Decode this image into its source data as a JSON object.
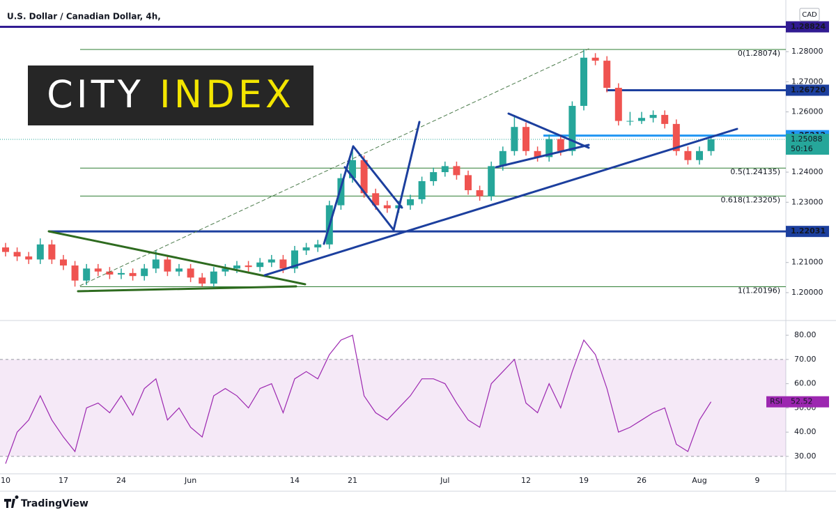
{
  "chart_data": [
    {
      "type": "candlestick",
      "title": "U.S. Dollar / Canadian Dollar, 4h,",
      "currency": "CAD",
      "categories": [
        "10",
        null,
        null,
        null,
        null,
        "17",
        null,
        null,
        null,
        null,
        "24",
        null,
        null,
        null,
        null,
        null,
        "Jun",
        null,
        null,
        null,
        null,
        null,
        null,
        null,
        null,
        "14",
        null,
        null,
        null,
        null,
        "21",
        null,
        null,
        null,
        null,
        null,
        null,
        null,
        "Jul",
        null,
        null,
        null,
        null,
        null,
        null,
        "12",
        null,
        null,
        null,
        null,
        "19",
        null,
        null,
        null,
        null,
        "26",
        null,
        null,
        null,
        null,
        "Aug",
        null,
        null,
        null,
        null,
        "9"
      ],
      "open": [
        1.215,
        1.2135,
        1.212,
        1.211,
        1.216,
        1.211,
        1.209,
        1.204,
        1.208,
        1.207,
        1.206,
        1.2065,
        1.2055,
        1.208,
        1.211,
        1.207,
        1.208,
        1.205,
        1.203,
        1.207,
        1.208,
        1.209,
        1.2085,
        1.21,
        1.211,
        1.208,
        1.214,
        1.215,
        1.216,
        1.229,
        1.238,
        1.244,
        1.233,
        1.229,
        1.228,
        1.229,
        1.231,
        1.237,
        1.24,
        1.242,
        1.239,
        1.234,
        1.232,
        1.242,
        1.247,
        1.255,
        1.247,
        1.245,
        1.251,
        1.247,
        1.262,
        1.278,
        1.277,
        1.268,
        1.257,
        1.257,
        1.258,
        1.259,
        1.256,
        1.247,
        1.244,
        1.247,
        null,
        null,
        null,
        null
      ],
      "high": [
        1.2165,
        1.215,
        1.2135,
        1.218,
        1.2175,
        1.2125,
        1.2105,
        1.2095,
        1.2095,
        1.2085,
        1.208,
        1.208,
        1.2095,
        1.214,
        1.2125,
        1.2095,
        1.2095,
        1.2065,
        1.2085,
        1.2095,
        1.2105,
        1.2105,
        1.2115,
        1.2125,
        1.2125,
        1.2155,
        1.2165,
        1.2175,
        1.2305,
        1.2395,
        1.248,
        1.2455,
        1.2345,
        1.2305,
        1.2305,
        1.2325,
        1.2385,
        1.2415,
        1.2435,
        1.2435,
        1.2405,
        1.2355,
        1.2435,
        1.2485,
        1.259,
        1.2565,
        1.2485,
        1.2525,
        1.2525,
        1.2635,
        1.2807,
        1.2795,
        1.2785,
        1.2695,
        1.26,
        1.26,
        1.2605,
        1.2605,
        1.2575,
        1.2485,
        1.2485,
        1.252,
        null,
        null,
        null,
        null
      ],
      "low": [
        1.212,
        1.2105,
        1.2095,
        1.2095,
        1.2095,
        1.2075,
        1.202,
        1.2025,
        1.2055,
        1.2045,
        1.2045,
        1.204,
        1.204,
        1.2065,
        1.2055,
        1.2055,
        1.2035,
        1.202,
        1.2015,
        1.2055,
        1.2065,
        1.207,
        1.207,
        1.2085,
        1.2065,
        1.2065,
        1.2125,
        1.2135,
        1.2145,
        1.2275,
        1.2365,
        1.2315,
        1.2275,
        1.2265,
        1.2265,
        1.2275,
        1.2295,
        1.2355,
        1.2385,
        1.2375,
        1.2325,
        1.2305,
        1.2305,
        1.2405,
        1.2455,
        1.2455,
        1.2435,
        1.2435,
        1.2455,
        1.2455,
        1.2605,
        1.2755,
        1.2665,
        1.2555,
        1.2555,
        1.256,
        1.2565,
        1.2545,
        1.2455,
        1.2425,
        1.2425,
        1.2455,
        null,
        null,
        null,
        null
      ],
      "close": [
        1.2135,
        1.212,
        1.211,
        1.216,
        1.211,
        1.209,
        1.204,
        1.208,
        1.207,
        1.206,
        1.2065,
        1.2055,
        1.208,
        1.211,
        1.207,
        1.208,
        1.205,
        1.203,
        1.207,
        1.208,
        1.209,
        1.2085,
        1.21,
        1.211,
        1.208,
        1.214,
        1.215,
        1.216,
        1.229,
        1.238,
        1.244,
        1.233,
        1.229,
        1.228,
        1.229,
        1.231,
        1.237,
        1.24,
        1.242,
        1.239,
        1.234,
        1.232,
        1.242,
        1.247,
        1.255,
        1.247,
        1.245,
        1.251,
        1.247,
        1.262,
        1.278,
        1.277,
        1.268,
        1.257,
        1.257,
        1.258,
        1.259,
        1.256,
        1.247,
        1.244,
        1.247,
        1.2509,
        null,
        null,
        null,
        null
      ],
      "up_color": "#26a69a",
      "down_color": "#ef5350",
      "ylim": [
        1.1912,
        1.2953
      ],
      "yticks": [
        {
          "value": 1.2,
          "label": "1.20000"
        },
        {
          "value": 1.21,
          "label": "1.21000"
        },
        {
          "value": 1.22,
          "label": "1.22000"
        },
        {
          "value": 1.23,
          "label": "1.23000"
        },
        {
          "value": 1.24,
          "label": "1.24000"
        },
        {
          "value": 1.25,
          "label": "1.25000"
        },
        {
          "value": 1.26,
          "label": "1.26000"
        },
        {
          "value": 1.27,
          "label": "1.27000"
        },
        {
          "value": 1.28,
          "label": "1.28000"
        }
      ],
      "fib_color": "#2e7d32",
      "fib_levels": [
        {
          "value": 1.28074,
          "label": "0(1.28074)"
        },
        {
          "value": 1.24135,
          "label": "0.5(1.24135)"
        },
        {
          "value": 1.23205,
          "label": "0.618(1.23205)"
        },
        {
          "value": 1.20196,
          "label": "1(1.20196)"
        }
      ],
      "price_lines": [
        {
          "value": 1.28824,
          "color": "#311b92"
        },
        {
          "value": 1.2672,
          "label": "1.26720",
          "color": "#1c3f9e"
        },
        {
          "value": 1.25212,
          "color": "#2196f3"
        },
        {
          "value": 1.22031,
          "color": "#1c3f9e"
        }
      ],
      "last_price": {
        "value": 1.25088,
        "countdown": "50:16",
        "color": "#26a69a"
      }
    },
    {
      "type": "line",
      "series": [
        {
          "name": "RSI",
          "color": "#9c27b0",
          "values": [
            27,
            40,
            45,
            55,
            45,
            38,
            32,
            50,
            52,
            48,
            55,
            47,
            58,
            62,
            45,
            50,
            42,
            38,
            55,
            58,
            55,
            50,
            58,
            60,
            48,
            62,
            65,
            62,
            72,
            78,
            80,
            55,
            48,
            45,
            50,
            55,
            62,
            62,
            60,
            52,
            45,
            42,
            60,
            65,
            70,
            52,
            48,
            60,
            50,
            65,
            78,
            72,
            58,
            40,
            42,
            45,
            48,
            50,
            35,
            32,
            45,
            52.52
          ]
        }
      ],
      "ylim": [
        22.8,
        85.5
      ],
      "yticks": [
        {
          "value": 30,
          "label": "30.00"
        },
        {
          "value": 40,
          "label": "40.00"
        },
        {
          "value": 50,
          "label": "50.00"
        },
        {
          "value": 60,
          "label": "60.00"
        },
        {
          "value": 70,
          "label": "70.00"
        },
        {
          "value": 80,
          "label": "80.00"
        }
      ],
      "levels": [
        30,
        70
      ]
    }
  ],
  "logo": {
    "word1": "CITY",
    "word2": "INDEX"
  },
  "footer": {
    "brand": "TradingView"
  }
}
